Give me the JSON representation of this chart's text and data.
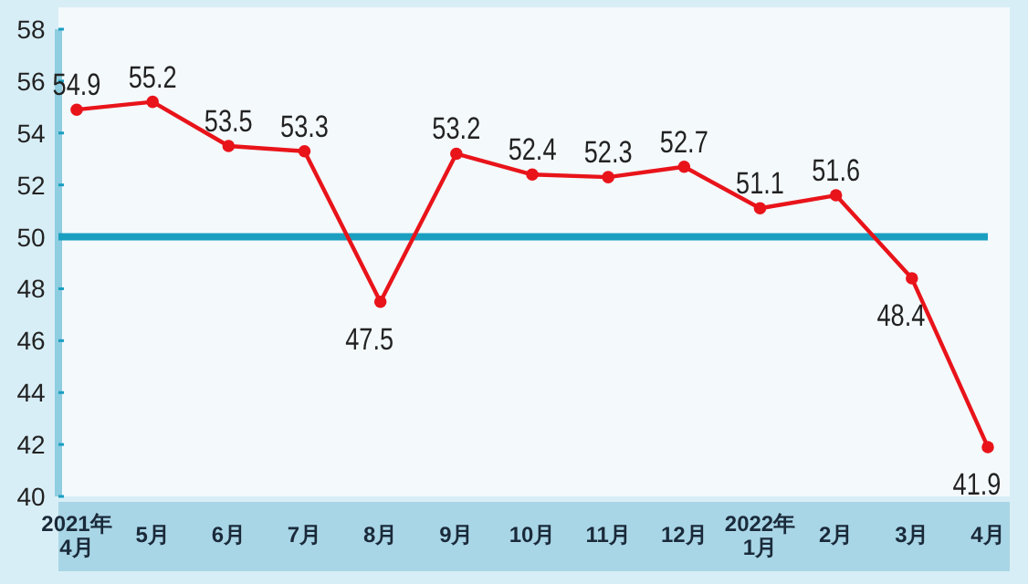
{
  "chart_data": {
    "type": "line",
    "categories": [
      "2021年\n4月",
      "5月",
      "6月",
      "7月",
      "8月",
      "9月",
      "10月",
      "11月",
      "12月",
      "2022年\n1月",
      "2月",
      "3月",
      "4月"
    ],
    "series": [
      {
        "color": "#e8141a",
        "values": [
          54.9,
          55.2,
          53.5,
          53.3,
          47.5,
          53.2,
          52.4,
          52.3,
          52.7,
          51.1,
          51.6,
          48.4,
          41.9
        ]
      }
    ],
    "ylim": [
      40,
      58
    ],
    "yticks": [
      40,
      42,
      44,
      46,
      48,
      50,
      52,
      54,
      56,
      58
    ],
    "ref_lines": [
      {
        "axis": "y",
        "value": 50,
        "color": "#1a9fc0"
      }
    ],
    "data_labels": true,
    "marker": "circle",
    "grid": false
  }
}
